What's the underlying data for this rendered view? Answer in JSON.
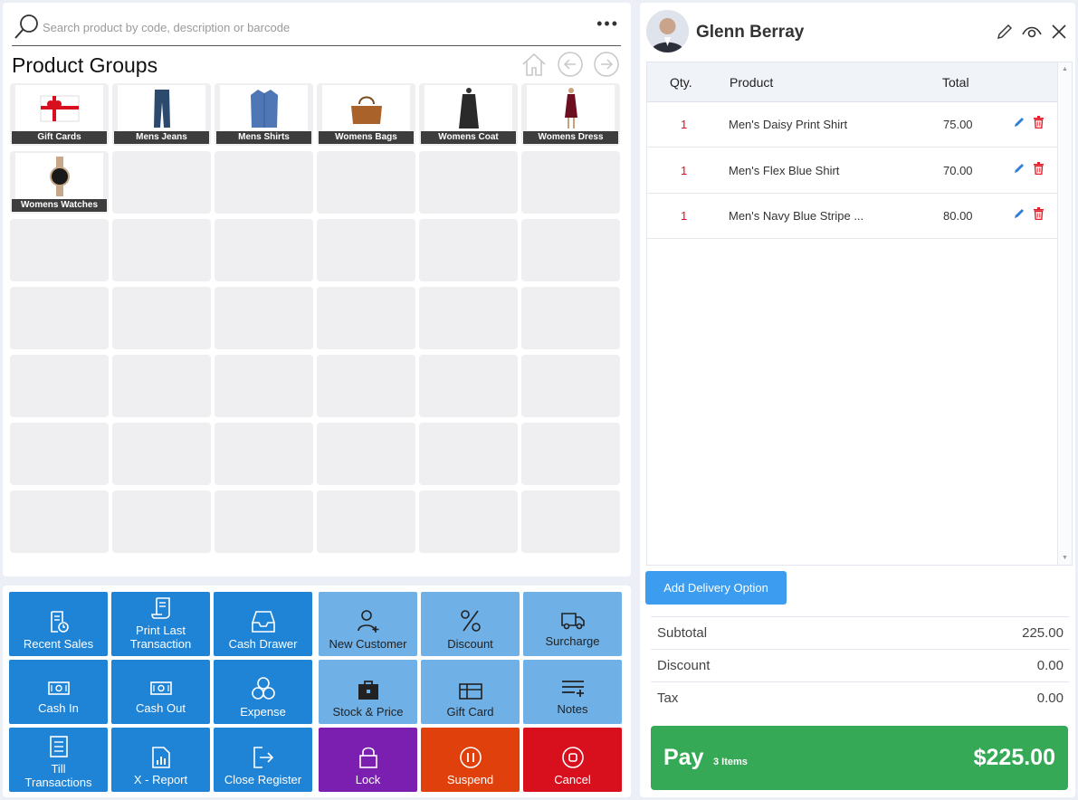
{
  "search": {
    "placeholder": "Search product by code, description or barcode"
  },
  "groups": {
    "title": "Product Groups",
    "items": [
      {
        "label": "Gift Cards",
        "icon": "gift-card-image"
      },
      {
        "label": "Mens Jeans",
        "icon": "jeans-image"
      },
      {
        "label": "Mens Shirts",
        "icon": "shirt-image"
      },
      {
        "label": "Womens Bags",
        "icon": "bag-image"
      },
      {
        "label": "Womens Coat",
        "icon": "coat-image"
      },
      {
        "label": "Womens Dress",
        "icon": "dress-image"
      },
      {
        "label": "Womens Watches",
        "icon": "watch-image"
      }
    ]
  },
  "actions": [
    {
      "label": "Recent Sales",
      "icon": "receipt-clock-icon"
    },
    {
      "label": "Print Last Transaction",
      "icon": "scroll-icon"
    },
    {
      "label": "Cash Drawer",
      "icon": "drawer-icon"
    },
    {
      "label": "New Customer",
      "icon": "add-user-icon"
    },
    {
      "label": "Discount",
      "icon": "percent-icon"
    },
    {
      "label": "Surcharge",
      "icon": "truck-icon"
    },
    {
      "label": "Cash In",
      "icon": "cash-icon"
    },
    {
      "label": "Cash Out",
      "icon": "cash-icon"
    },
    {
      "label": "Expense",
      "icon": "coins-icon"
    },
    {
      "label": "Stock & Price",
      "icon": "briefcase-icon"
    },
    {
      "label": "Gift Card",
      "icon": "gift-card-icon"
    },
    {
      "label": "Notes",
      "icon": "notes-icon"
    },
    {
      "label": "Till Transactions",
      "icon": "list-icon"
    },
    {
      "label": "X - Report",
      "icon": "report-icon"
    },
    {
      "label": "Close Register",
      "icon": "exit-icon"
    },
    {
      "label": "Lock",
      "icon": "lock-icon"
    },
    {
      "label": "Suspend",
      "icon": "pause-icon"
    },
    {
      "label": "Cancel",
      "icon": "stop-icon"
    }
  ],
  "customer": {
    "name": "Glenn Berray"
  },
  "cart": {
    "headers": {
      "qty": "Qty.",
      "product": "Product",
      "total": "Total"
    },
    "rows": [
      {
        "qty": "1",
        "product": "Men's Daisy Print Shirt",
        "total": "75.00"
      },
      {
        "qty": "1",
        "product": "Men's Flex Blue Shirt",
        "total": "70.00"
      },
      {
        "qty": "1",
        "product": "Men's Navy Blue Stripe ...",
        "total": "80.00"
      }
    ]
  },
  "delivery": {
    "label": "Add Delivery Option"
  },
  "summary": {
    "subtotal_label": "Subtotal",
    "subtotal": "225.00",
    "discount_label": "Discount",
    "discount": "0.00",
    "tax_label": "Tax",
    "tax": "0.00"
  },
  "pay": {
    "label": "Pay",
    "items": "3 Items",
    "total": "$225.00"
  },
  "colors": {
    "accent": "#1f83d6",
    "pay": "#35a956",
    "lock": "#7b1fb0",
    "suspend": "#e0400c",
    "cancel": "#d8101d"
  }
}
